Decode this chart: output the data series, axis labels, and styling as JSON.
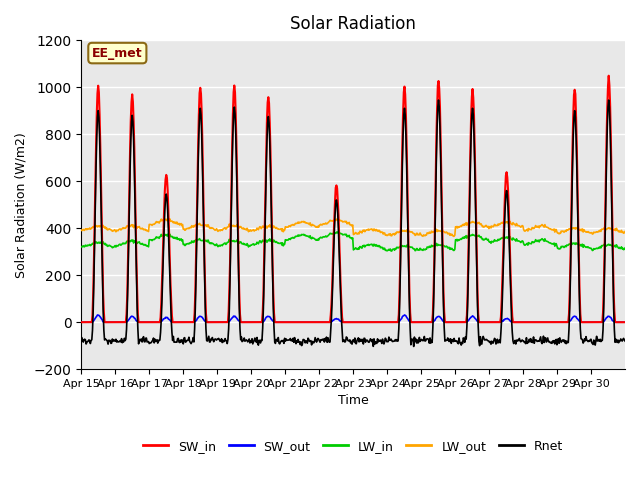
{
  "title": "Solar Radiation",
  "xlabel": "Time",
  "ylabel": "Solar Radiation (W/m2)",
  "ylim": [
    -200,
    1200
  ],
  "annotation": "EE_met",
  "background_color": "#ffffff",
  "plot_bg_color": "#e8e8e8",
  "grid_color": "#ffffff",
  "x_tick_labels": [
    "Apr 15",
    "Apr 16",
    "Apr 17",
    "Apr 18",
    "Apr 19",
    "Apr 20",
    "Apr 21",
    "Apr 22",
    "Apr 23",
    "Apr 24",
    "Apr 25",
    "Apr 26",
    "Apr 27",
    "Apr 28",
    "Apr 29",
    "Apr 30"
  ],
  "yticks": [
    -200,
    0,
    200,
    400,
    600,
    800,
    1000,
    1200
  ],
  "legend_entries": [
    "SW_in",
    "SW_out",
    "LW_in",
    "LW_out",
    "Rnet"
  ],
  "legend_colors": [
    "#ff0000",
    "#0000ff",
    "#00cc00",
    "#ffa500",
    "#000000"
  ],
  "n_days": 16,
  "pts_per_day": 48,
  "SW_in_peak": [
    1000,
    970,
    630,
    1000,
    1005,
    960,
    0,
    590,
    0,
    1005,
    1030,
    990,
    640,
    0,
    990,
    1040
  ],
  "SW_out_peak": [
    30,
    25,
    20,
    25,
    25,
    25,
    0,
    15,
    0,
    30,
    25,
    25,
    15,
    0,
    25,
    25
  ],
  "LW_in_base": [
    320,
    325,
    350,
    330,
    325,
    330,
    350,
    360,
    310,
    305,
    310,
    350,
    340,
    330,
    315,
    310
  ],
  "LW_out_base": [
    390,
    390,
    415,
    395,
    390,
    390,
    405,
    415,
    375,
    370,
    370,
    405,
    405,
    390,
    380,
    380
  ],
  "Rnet_night": -80
}
